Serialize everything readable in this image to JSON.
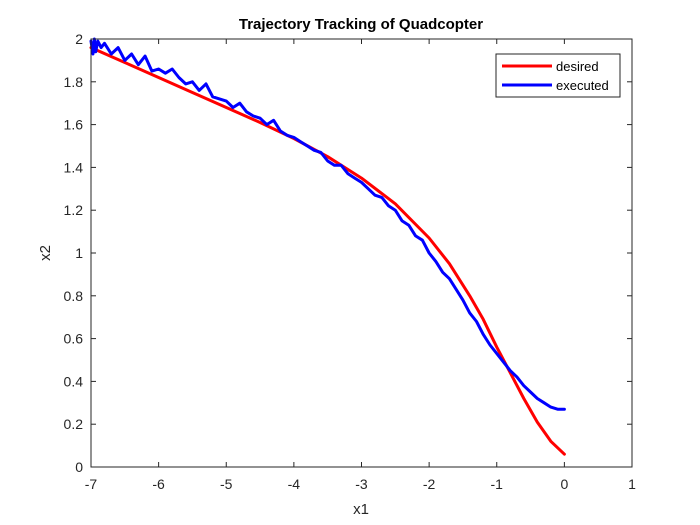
{
  "chart_data": {
    "type": "line",
    "title": "Trajectory Tracking of Quadcopter",
    "xlabel": "x1",
    "ylabel": "x2",
    "xlim": [
      -7,
      1
    ],
    "ylim": [
      0,
      2
    ],
    "xticks": [
      -7,
      -6,
      -5,
      -4,
      -3,
      -2,
      -1,
      0,
      1
    ],
    "yticks": [
      0,
      0.2,
      0.4,
      0.6,
      0.8,
      1,
      1.2,
      1.4,
      1.6,
      1.8,
      2
    ],
    "xtick_labels": [
      "-7",
      "-6",
      "-5",
      "-4",
      "-3",
      "-2",
      "-1",
      "0",
      "1"
    ],
    "ytick_labels": [
      "0",
      "0.2",
      "0.4",
      "0.6",
      "0.8",
      "1",
      "1.2",
      "1.4",
      "1.6",
      "1.8",
      "2"
    ],
    "grid": false,
    "legend_position": "top-right",
    "series": [
      {
        "name": "desired",
        "color": "#ff0000",
        "x": [
          -7.0,
          -6.5,
          -6.0,
          -5.5,
          -5.0,
          -4.5,
          -4.0,
          -3.5,
          -3.0,
          -2.5,
          -2.0,
          -1.7,
          -1.4,
          -1.2,
          -1.0,
          -0.8,
          -0.6,
          -0.4,
          -0.2,
          0.0
        ],
        "y": [
          1.96,
          1.89,
          1.82,
          1.75,
          1.68,
          1.61,
          1.535,
          1.45,
          1.35,
          1.23,
          1.07,
          0.95,
          0.8,
          0.69,
          0.56,
          0.44,
          0.32,
          0.21,
          0.12,
          0.06
        ]
      },
      {
        "name": "executed",
        "color": "#0000ff",
        "x": [
          -7.0,
          -6.97,
          -6.95,
          -6.93,
          -6.9,
          -6.85,
          -6.8,
          -6.7,
          -6.6,
          -6.5,
          -6.4,
          -6.3,
          -6.2,
          -6.1,
          -6.0,
          -5.9,
          -5.8,
          -5.7,
          -5.6,
          -5.5,
          -5.4,
          -5.3,
          -5.2,
          -5.1,
          -5.0,
          -4.9,
          -4.8,
          -4.7,
          -4.6,
          -4.5,
          -4.4,
          -4.3,
          -4.2,
          -4.1,
          -4.0,
          -3.9,
          -3.8,
          -3.7,
          -3.6,
          -3.5,
          -3.4,
          -3.3,
          -3.2,
          -3.1,
          -3.0,
          -2.9,
          -2.8,
          -2.7,
          -2.6,
          -2.5,
          -2.4,
          -2.3,
          -2.2,
          -2.1,
          -2.0,
          -1.9,
          -1.8,
          -1.7,
          -1.6,
          -1.5,
          -1.4,
          -1.3,
          -1.2,
          -1.1,
          -1.0,
          -0.9,
          -0.8,
          -0.7,
          -0.6,
          -0.5,
          -0.4,
          -0.3,
          -0.2,
          -0.1,
          0.0
        ],
        "y": [
          1.99,
          1.93,
          2.0,
          1.94,
          1.99,
          1.96,
          1.98,
          1.93,
          1.96,
          1.9,
          1.93,
          1.88,
          1.92,
          1.85,
          1.86,
          1.84,
          1.86,
          1.82,
          1.79,
          1.8,
          1.76,
          1.79,
          1.73,
          1.72,
          1.71,
          1.68,
          1.7,
          1.66,
          1.64,
          1.63,
          1.6,
          1.62,
          1.57,
          1.55,
          1.54,
          1.52,
          1.5,
          1.48,
          1.47,
          1.43,
          1.41,
          1.41,
          1.37,
          1.35,
          1.33,
          1.3,
          1.27,
          1.26,
          1.22,
          1.2,
          1.15,
          1.13,
          1.08,
          1.06,
          1.0,
          0.96,
          0.91,
          0.88,
          0.83,
          0.78,
          0.72,
          0.68,
          0.62,
          0.57,
          0.53,
          0.49,
          0.45,
          0.42,
          0.38,
          0.35,
          0.32,
          0.3,
          0.28,
          0.27,
          0.27
        ]
      }
    ]
  }
}
